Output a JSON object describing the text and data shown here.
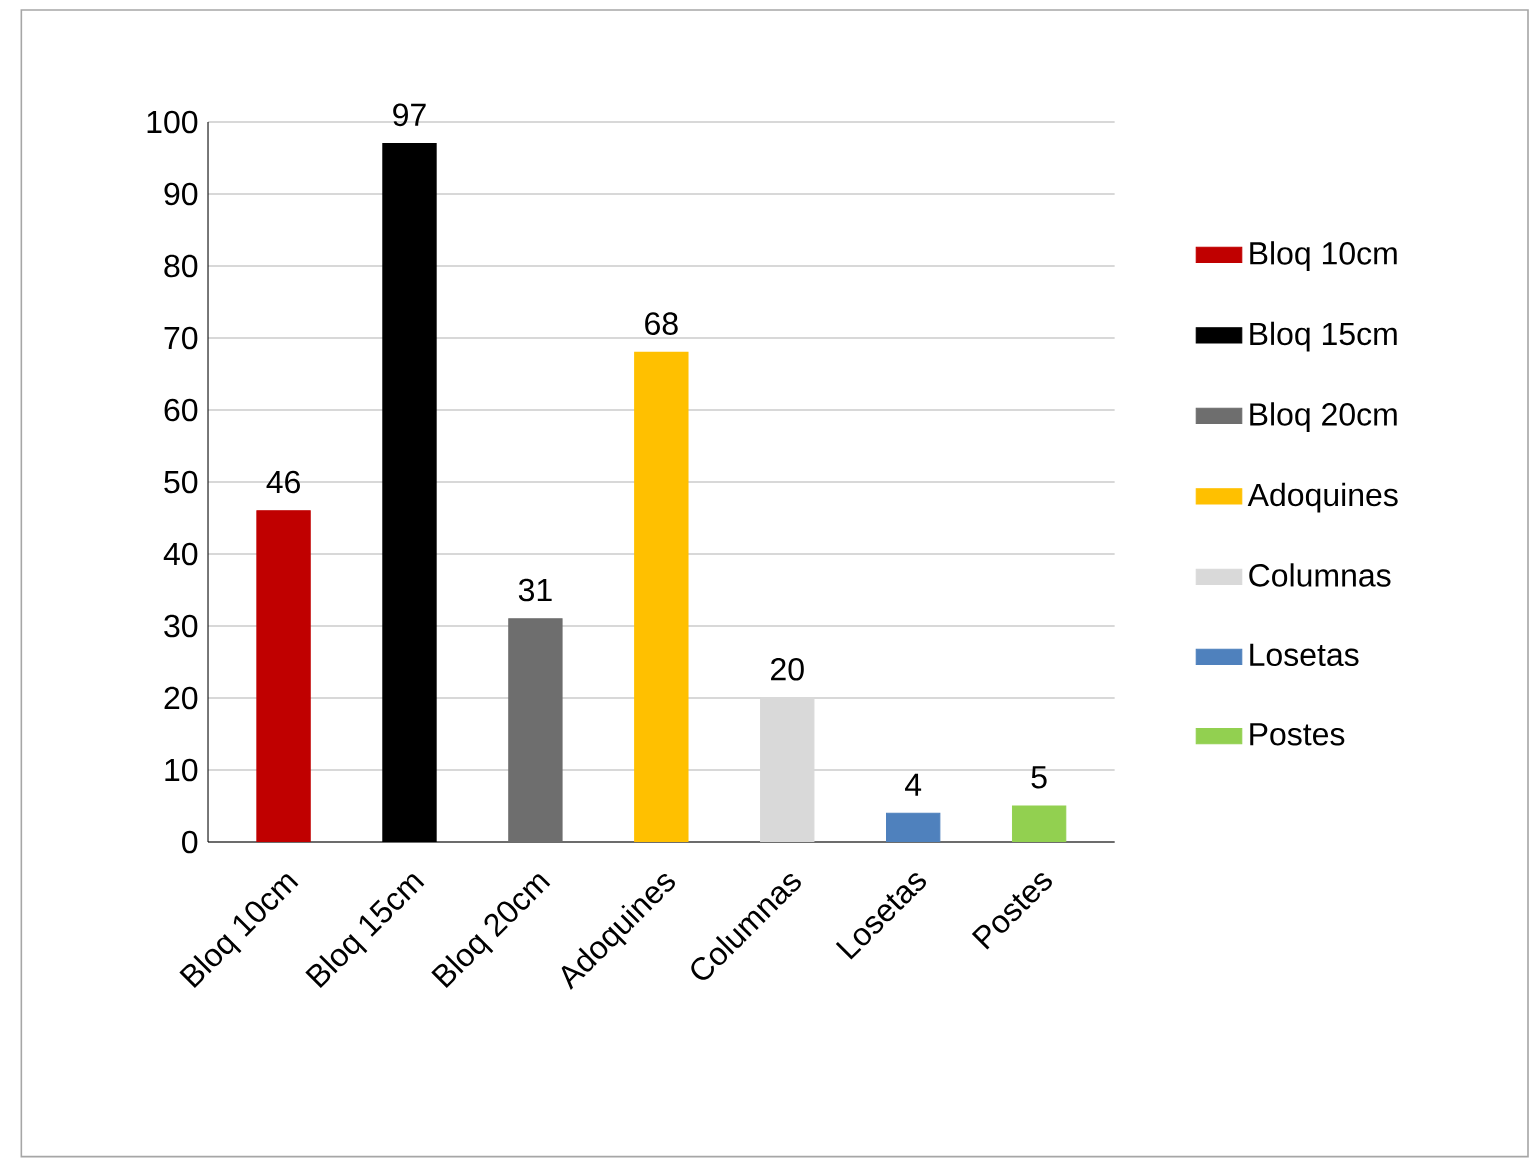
{
  "chart_data": {
    "type": "bar",
    "categories": [
      "Bloq 10cm",
      "Bloq 15cm",
      "Bloq 20cm",
      "Adoquines",
      "Columnas",
      "Losetas",
      "Postes"
    ],
    "series": [
      {
        "name": "Bloq 10cm",
        "color": "#c00000",
        "values": [
          46,
          null,
          null,
          null,
          null,
          null,
          null
        ]
      },
      {
        "name": "Bloq 15cm",
        "color": "#000000",
        "values": [
          null,
          97,
          null,
          null,
          null,
          null,
          null
        ]
      },
      {
        "name": "Bloq 20cm",
        "color": "#6e6e6e",
        "values": [
          null,
          null,
          31,
          null,
          null,
          null,
          null
        ]
      },
      {
        "name": "Adoquines",
        "color": "#ffc000",
        "values": [
          null,
          null,
          null,
          68,
          null,
          null,
          null
        ]
      },
      {
        "name": "Columnas",
        "color": "#d9d9d9",
        "values": [
          null,
          null,
          null,
          null,
          20,
          null,
          null
        ]
      },
      {
        "name": "Losetas",
        "color": "#4f81bd",
        "values": [
          null,
          null,
          null,
          null,
          null,
          4,
          null
        ]
      },
      {
        "name": "Postes",
        "color": "#92d050",
        "values": [
          null,
          null,
          null,
          null,
          null,
          null,
          5
        ]
      }
    ],
    "ylim": [
      0,
      100
    ],
    "yticks": [
      0,
      10,
      20,
      30,
      40,
      50,
      60,
      70,
      80,
      90,
      100
    ],
    "grid": "y",
    "legend": "right",
    "data_labels": true
  }
}
